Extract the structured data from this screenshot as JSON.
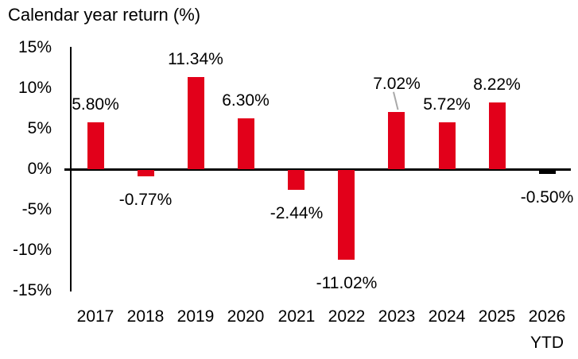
{
  "chart_data": {
    "type": "bar",
    "title": "Calendar year return (%)",
    "categories": [
      "2017",
      "2018",
      "2019",
      "2020",
      "2021",
      "2022",
      "2023",
      "2024",
      "2025",
      "2026"
    ],
    "category_sublabels": [
      "",
      "",
      "",
      "",
      "",
      "",
      "",
      "",
      "",
      "YTD"
    ],
    "values": [
      5.8,
      -0.77,
      11.34,
      6.3,
      -2.44,
      -11.02,
      7.02,
      5.72,
      8.22,
      -0.5
    ],
    "value_labels": [
      "5.80%",
      "-0.77%",
      "11.34%",
      "6.30%",
      "-2.44%",
      "-11.02%",
      "7.02%",
      "5.72%",
      "8.22%",
      "-0.50%"
    ],
    "y_ticks": [
      {
        "label": "15%",
        "value": 15
      },
      {
        "label": "10%",
        "value": 10
      },
      {
        "label": "5%",
        "value": 5
      },
      {
        "label": "0%",
        "value": 0
      },
      {
        "label": "-5%",
        "value": -5
      },
      {
        "label": "-10%",
        "value": -10
      },
      {
        "label": "-15%",
        "value": -15
      }
    ],
    "ylim": [
      -15,
      15
    ],
    "grid": false,
    "legend": "none",
    "bar_colors": [
      "#e2001a",
      "#e2001a",
      "#e2001a",
      "#e2001a",
      "#e2001a",
      "#e2001a",
      "#e2001a",
      "#e2001a",
      "#e2001a",
      "#000000"
    ],
    "colors": {
      "bar": "#e2001a",
      "last_bar": "#000000",
      "axis": "#000000",
      "text": "#000000",
      "leader_line": "#a9a9a9"
    },
    "callout": {
      "index": 6,
      "label": "7.02%"
    }
  }
}
